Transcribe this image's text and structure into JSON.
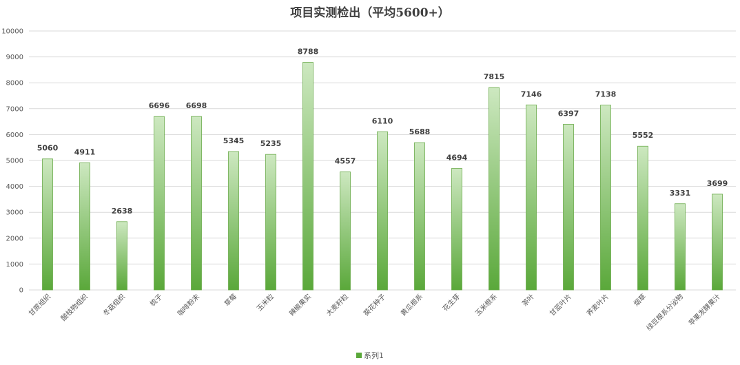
{
  "colors": {
    "bar_top": "#cde8c0",
    "bar_bottom": "#5aa83a",
    "bar_stroke": "#6aaa4a",
    "axis": "#bfbfbf"
  },
  "chart_data": {
    "type": "bar",
    "title": "项目实测检出（平均5600+）",
    "xlabel": "",
    "ylabel": "",
    "ylim": [
      0,
      10000
    ],
    "yticks": [
      "0",
      "1000",
      "2000",
      "3000",
      "4000",
      "5000",
      "6000",
      "7000",
      "8000",
      "9000",
      "10000"
    ],
    "grid": true,
    "legend": "bottom",
    "categories": [
      "甘蔗组织",
      "酸枝物组织",
      "冬菇组织",
      "梳子",
      "咖啡粉末",
      "草莓",
      "玉米粒",
      "辣椒果实",
      "大麦籽粒",
      "葵花种子",
      "黄瓜根系",
      "花生芽",
      "玉米根系",
      "茶叶",
      "甘蓝叶片",
      "荞麦叶片",
      "烟草",
      "绿豆根系分泌物",
      "苹果发酵果汁"
    ],
    "series": [
      {
        "name": "系列1",
        "values": [
          5060,
          4911,
          2638,
          6696,
          6698,
          5345,
          5235,
          8788,
          4557,
          6110,
          5688,
          4694,
          7815,
          7146,
          6397,
          7138,
          5552,
          3331,
          3699
        ]
      }
    ]
  }
}
